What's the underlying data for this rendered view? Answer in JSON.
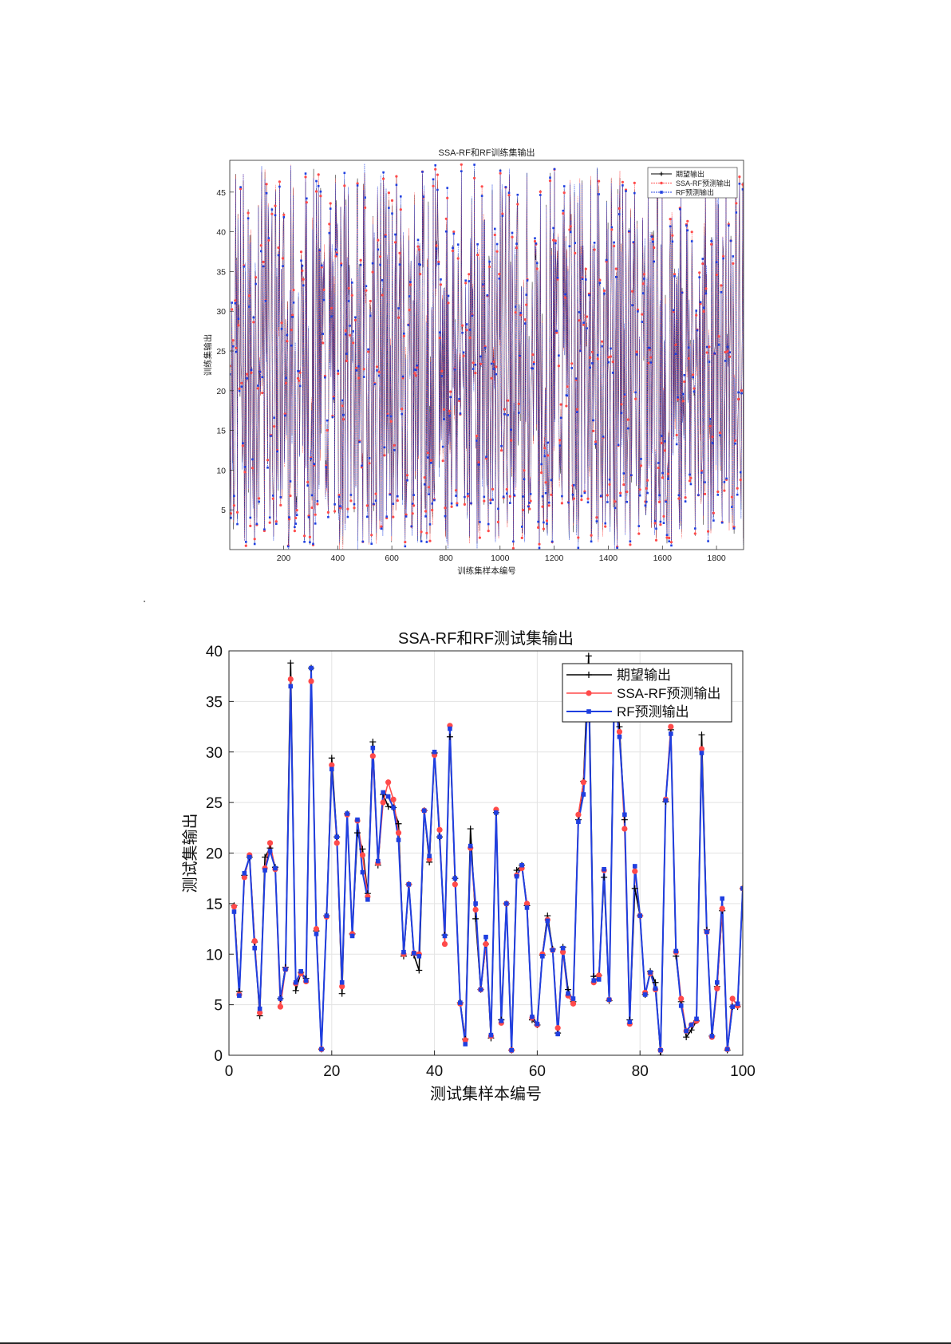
{
  "colors": {
    "expected": "#000000",
    "ssa_rf": "#ff4a4a",
    "rf": "#1f3fe0",
    "grid": "#e3e3e3",
    "axis": "#262626"
  },
  "chart_data": [
    {
      "id": "train",
      "type": "line",
      "title": "SSA-RF和RF训练集输出",
      "xlabel": "训练集样本编号",
      "ylabel": "训练集输出",
      "xlim": [
        1,
        1900
      ],
      "ylim": [
        0,
        49
      ],
      "xticks": [
        200,
        400,
        600,
        800,
        1000,
        1200,
        1400,
        1600,
        1800
      ],
      "yticks": [
        5,
        10,
        15,
        20,
        25,
        30,
        35,
        40,
        45
      ],
      "grid": false,
      "legend_position": "top-right",
      "series": [
        {
          "name": "期望输出",
          "marker": "plus"
        },
        {
          "name": "SSA-RF预测输出",
          "marker": "circle"
        },
        {
          "name": "RF预测输出",
          "marker": "square"
        }
      ],
      "n_points": 1900,
      "value_range": [
        0.5,
        48
      ],
      "note_values": "dense oscillating series, approx. uniformly distributed between 0.5 and 48"
    },
    {
      "id": "test",
      "type": "line",
      "title": "SSA-RF和RF测试集输出",
      "xlabel": "测试集样本编号",
      "ylabel": "测试集输出",
      "xlim": [
        0,
        100
      ],
      "ylim": [
        0,
        40
      ],
      "xticks": [
        0,
        20,
        40,
        60,
        80,
        100
      ],
      "yticks": [
        0,
        5,
        10,
        15,
        20,
        25,
        30,
        35,
        40
      ],
      "grid": true,
      "legend_position": "top-right",
      "x": [
        1,
        2,
        3,
        4,
        5,
        6,
        7,
        8,
        9,
        10,
        11,
        12,
        13,
        14,
        15,
        16,
        17,
        18,
        19,
        20,
        21,
        22,
        23,
        24,
        25,
        26,
        27,
        28,
        29,
        30,
        31,
        32,
        33,
        34,
        35,
        36,
        37,
        38,
        39,
        40,
        41,
        42,
        43,
        44,
        45,
        46,
        47,
        48,
        49,
        50,
        51,
        52,
        53,
        54,
        55,
        56,
        57,
        58,
        59,
        60,
        61,
        62,
        63,
        64,
        65,
        66,
        67,
        68,
        69,
        70,
        71,
        72,
        73,
        74,
        75,
        76,
        77,
        78,
        79,
        80,
        81,
        82,
        83,
        84,
        85,
        86,
        87,
        88,
        89,
        90,
        91,
        92,
        93,
        94,
        95,
        96,
        97,
        98,
        99,
        100
      ],
      "series": [
        {
          "name": "期望输出",
          "marker": "plus",
          "values": [
            14.8,
            6.3,
            17.8,
            19.6,
            11.2,
            3.9,
            19.6,
            20.5,
            18.6,
            5.6,
            8.7,
            38.8,
            6.4,
            8.2,
            7.6,
            38.3,
            12.3,
            0.6,
            13.8,
            29.4,
            21.6,
            6.1,
            23.9,
            12.0,
            22.0,
            20.4,
            16.0,
            31.0,
            18.8,
            25.8,
            24.6,
            24.5,
            22.9,
            9.8,
            16.9,
            9.9,
            8.4,
            24.2,
            19.1,
            29.9,
            21.6,
            11.9,
            31.5,
            17.5,
            5.2,
            1.6,
            22.4,
            13.5,
            6.5,
            11.0,
            1.7,
            24.0,
            3.5,
            15.0,
            0.5,
            18.3,
            18.8,
            14.8,
            3.5,
            3.0,
            9.9,
            13.8,
            10.5,
            2.2,
            10.7,
            6.5,
            5.3,
            23.3,
            27.1,
            39.5,
            7.8,
            7.9,
            17.6,
            5.4,
            37.5,
            32.5,
            23.3,
            3.5,
            16.5,
            13.8,
            6.0,
            8.3,
            7.2,
            0.0,
            25.1,
            32.2,
            9.8,
            5.3,
            1.8,
            2.5,
            3.4,
            31.7,
            12.4,
            1.9,
            6.8,
            14.3,
            0.5,
            4.8,
            4.8,
            16.5
          ]
        },
        {
          "name": "SSA-RF预测输出",
          "marker": "circle",
          "values": [
            14.7,
            6.0,
            17.6,
            19.8,
            11.3,
            4.2,
            18.5,
            21.0,
            18.4,
            4.8,
            8.5,
            37.2,
            7.1,
            8.1,
            7.3,
            37.0,
            12.5,
            0.6,
            13.7,
            28.7,
            21.0,
            6.8,
            23.8,
            12.0,
            23.2,
            19.8,
            15.7,
            29.6,
            19.0,
            25.0,
            27.0,
            25.3,
            22.0,
            10.0,
            16.9,
            10.1,
            10.0,
            24.2,
            19.4,
            29.7,
            22.3,
            11.0,
            32.6,
            16.9,
            5.1,
            1.5,
            20.5,
            14.4,
            6.5,
            11.0,
            1.9,
            24.3,
            3.2,
            15.0,
            0.5,
            17.8,
            18.5,
            15.0,
            3.7,
            3.0,
            10.0,
            13.4,
            10.4,
            2.7,
            10.2,
            5.9,
            5.1,
            23.8,
            27.0,
            36.7,
            7.2,
            7.9,
            18.3,
            5.5,
            35.6,
            32.0,
            22.4,
            3.1,
            18.2,
            13.8,
            6.2,
            8.1,
            6.5,
            0.5,
            25.3,
            32.5,
            10.2,
            5.6,
            2.4,
            3.0,
            3.4,
            30.3,
            12.2,
            1.8,
            6.6,
            14.5,
            0.6,
            5.6,
            4.9,
            16.5
          ]
        },
        {
          "name": "RF预测输出",
          "marker": "square",
          "values": [
            14.2,
            5.9,
            18.0,
            19.6,
            10.6,
            4.6,
            18.3,
            20.2,
            18.5,
            5.6,
            8.5,
            36.5,
            7.2,
            8.3,
            7.4,
            38.3,
            12.0,
            0.6,
            13.8,
            28.3,
            21.6,
            7.2,
            23.9,
            11.8,
            23.3,
            18.1,
            15.4,
            30.4,
            19.2,
            26.0,
            25.6,
            24.5,
            21.3,
            10.2,
            16.9,
            10.1,
            9.8,
            24.2,
            19.7,
            30.0,
            21.6,
            11.8,
            32.3,
            17.5,
            5.2,
            1.1,
            20.7,
            15.0,
            6.5,
            11.7,
            2.0,
            24.0,
            3.4,
            15.0,
            0.5,
            17.7,
            18.8,
            14.6,
            3.8,
            3.1,
            9.8,
            13.3,
            10.4,
            2.1,
            10.6,
            6.1,
            5.6,
            23.1,
            25.8,
            37.5,
            7.4,
            7.5,
            18.4,
            5.5,
            36.0,
            31.5,
            23.8,
            3.3,
            18.7,
            13.8,
            6.0,
            8.2,
            6.6,
            0.5,
            25.2,
            31.8,
            10.3,
            4.9,
            2.4,
            3.0,
            3.6,
            29.9,
            12.2,
            1.9,
            7.2,
            15.5,
            0.6,
            4.8,
            5.1,
            16.5
          ]
        }
      ]
    }
  ]
}
